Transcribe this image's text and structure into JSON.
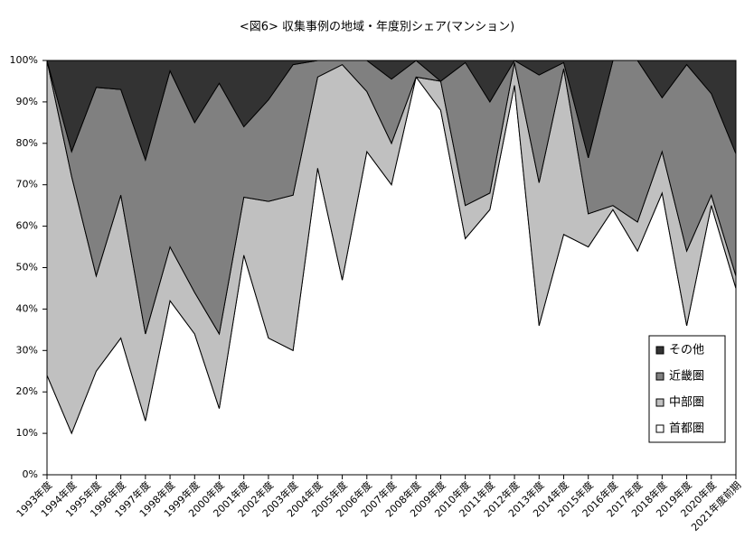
{
  "chart_data": {
    "type": "stacked-area",
    "title": "<図6> 収集事例の地域・年度別シェア(マンション)",
    "categories": [
      "1993年度",
      "1994年度",
      "1995年度",
      "1996年度",
      "1997年度",
      "1998年度",
      "1999年度",
      "2000年度",
      "2001年度",
      "2002年度",
      "2003年度",
      "2004年度",
      "2005年度",
      "2006年度",
      "2007年度",
      "2008年度",
      "2009年度",
      "2010年度",
      "2011年度",
      "2012年度",
      "2013年度",
      "2014年度",
      "2015年度",
      "2016年度",
      "2017年度",
      "2018年度",
      "2019年度",
      "2020年度",
      "2021年度前期"
    ],
    "series": [
      {
        "name": "首都圏",
        "color": "#ffffff",
        "values": [
          24,
          10,
          25,
          33,
          13,
          42,
          34,
          16,
          53,
          33,
          30,
          74,
          47,
          78,
          70,
          96,
          88,
          57,
          64,
          94,
          36,
          58,
          55,
          64,
          54,
          68,
          36,
          65,
          45
        ]
      },
      {
        "name": "中部圏",
        "color": "#c0c0c0",
        "values": [
          76,
          62,
          23,
          34.5,
          21,
          13,
          10,
          18,
          14,
          33,
          37.5,
          22,
          52,
          14.5,
          10,
          0,
          7,
          8,
          4,
          5.5,
          34.5,
          40,
          8,
          1,
          7,
          10,
          18,
          2.5,
          3
        ]
      },
      {
        "name": "近畿圏",
        "color": "#808080",
        "values": [
          0,
          6,
          45.5,
          25.5,
          42,
          42.5,
          41,
          60.5,
          17,
          24.5,
          31.5,
          4,
          1,
          7.5,
          15.5,
          4,
          0,
          34.5,
          22,
          0.5,
          26,
          1.5,
          13.5,
          35,
          39,
          13,
          45,
          24.5,
          29.5
        ]
      },
      {
        "name": "その他",
        "color": "#333333",
        "values": [
          0,
          22,
          6.5,
          7,
          24,
          2.5,
          15,
          5.5,
          16,
          9.5,
          1,
          0,
          0,
          0,
          4.5,
          0,
          5,
          0.5,
          10,
          0,
          3.5,
          0.5,
          23.5,
          0,
          0,
          9,
          1,
          8,
          22.5
        ]
      }
    ],
    "ylim": [
      0,
      100
    ],
    "yticks": [
      {
        "value": 0,
        "label": "0%"
      },
      {
        "value": 10,
        "label": "10%"
      },
      {
        "value": 20,
        "label": "20%"
      },
      {
        "value": 30,
        "label": "30%"
      },
      {
        "value": 40,
        "label": "40%"
      },
      {
        "value": 50,
        "label": "50%"
      },
      {
        "value": 60,
        "label": "60%"
      },
      {
        "value": 70,
        "label": "70%"
      },
      {
        "value": 80,
        "label": "80%"
      },
      {
        "value": 90,
        "label": "90%"
      },
      {
        "value": 100,
        "label": "100%"
      }
    ],
    "legend": "lower right"
  }
}
